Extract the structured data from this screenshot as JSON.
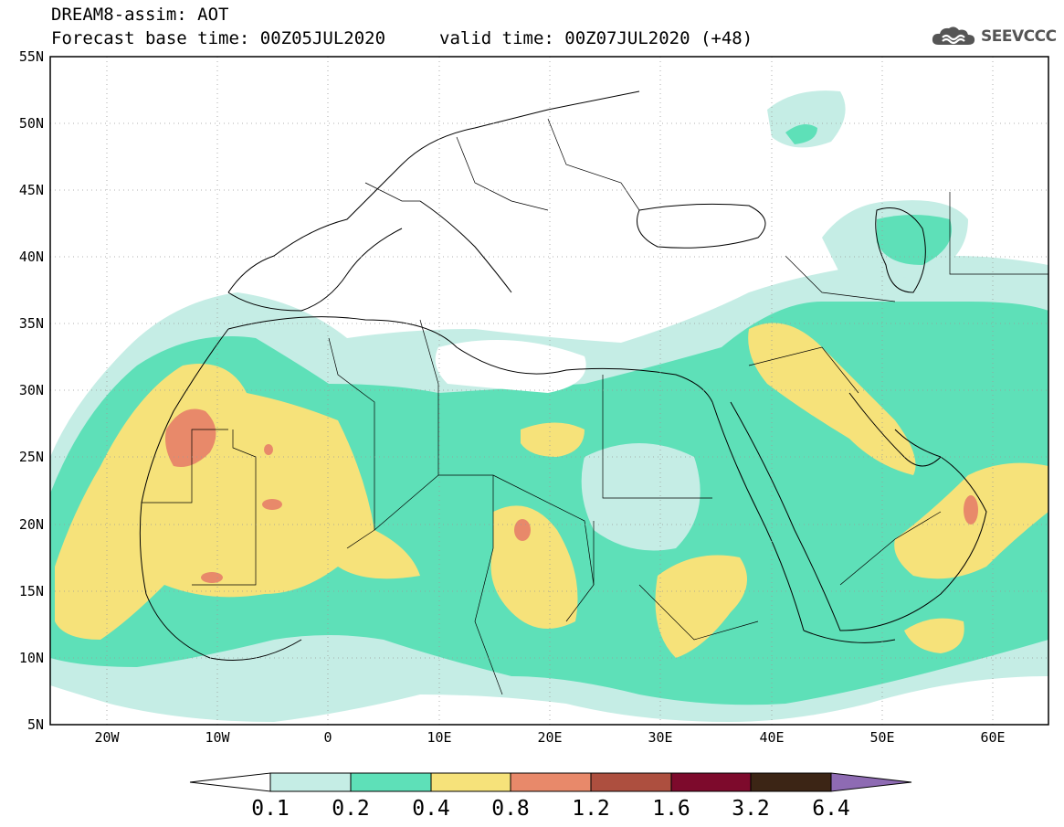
{
  "header": {
    "title_line1": "DREAM8-assim: AOT",
    "title_line2": "Forecast base time: 00Z05JUL2020",
    "valid_time": "valid time: 00Z07JUL2020 (+48)"
  },
  "logo": {
    "text": "SEEVCCC",
    "icon": "cloud-icon"
  },
  "map": {
    "lat_labels": [
      "55N",
      "50N",
      "45N",
      "40N",
      "35N",
      "30N",
      "25N",
      "20N",
      "15N",
      "10N",
      "5N"
    ],
    "lon_labels": [
      "20W",
      "10W",
      "0",
      "10E",
      "20E",
      "30E",
      "40E",
      "50E",
      "60E"
    ],
    "lon_range": [
      -25,
      65
    ],
    "lat_range": [
      5,
      55
    ]
  },
  "colorbar": {
    "labels": [
      "0.1",
      "0.2",
      "0.4",
      "0.8",
      "1.2",
      "1.6",
      "3.2",
      "6.4"
    ],
    "colors": [
      "#ffffff",
      "#c5ede5",
      "#5ee0b8",
      "#f6e27a",
      "#e8896a",
      "#ad4f3f",
      "#7d0a2c",
      "#3c2515",
      "#8e6bb3"
    ]
  }
}
